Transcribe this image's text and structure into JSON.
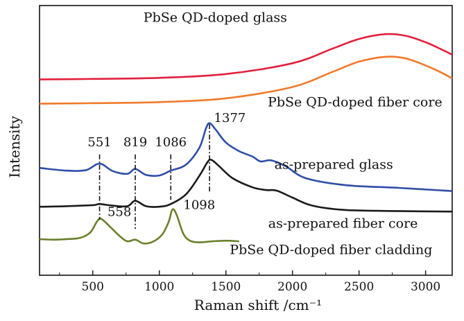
{
  "chart_data": {
    "type": "line",
    "xlabel": "Raman shift /cm⁻¹",
    "ylabel": "Intensity",
    "xlim": [
      100,
      3200
    ],
    "ylim": [
      0,
      100
    ],
    "x_ticks": [
      500,
      1000,
      1500,
      2000,
      2500,
      3000
    ],
    "x_tick_labels": [
      "500",
      "1000",
      "1500",
      "2000",
      "2500",
      "3000"
    ],
    "y_ticks_shown": false,
    "grid": false,
    "legend": "none",
    "series": [
      {
        "label": "PbSe QD-doped glass",
        "color": "#e21f3c",
        "points": [
          [
            100,
            72.6
          ],
          [
            500,
            72.8
          ],
          [
            1000,
            73.2
          ],
          [
            1500,
            74.6
          ],
          [
            2000,
            78.6
          ],
          [
            2300,
            84.0
          ],
          [
            2500,
            87.6
          ],
          [
            2700,
            89.4
          ],
          [
            2850,
            88.8
          ],
          [
            3000,
            86.4
          ],
          [
            3100,
            84.2
          ],
          [
            3200,
            81.8
          ]
        ]
      },
      {
        "label": "PbSe QD-doped fiber core",
        "color": "#f07a2a",
        "points": [
          [
            100,
            63.6
          ],
          [
            500,
            63.8
          ],
          [
            1000,
            64.2
          ],
          [
            1500,
            65.6
          ],
          [
            2000,
            69.8
          ],
          [
            2300,
            75.4
          ],
          [
            2500,
            79.2
          ],
          [
            2700,
            81.0
          ],
          [
            2850,
            80.4
          ],
          [
            3000,
            77.8
          ],
          [
            3100,
            75.6
          ],
          [
            3200,
            73.0
          ]
        ]
      },
      {
        "label": "as-prepared glass",
        "color": "#2f4ea8",
        "points": [
          [
            100,
            39.8
          ],
          [
            300,
            38.8
          ],
          [
            450,
            39.0
          ],
          [
            551,
            41.4
          ],
          [
            650,
            38.6
          ],
          [
            760,
            37.6
          ],
          [
            819,
            39.4
          ],
          [
            900,
            37.2
          ],
          [
            1000,
            37.0
          ],
          [
            1086,
            38.8
          ],
          [
            1200,
            41.0
          ],
          [
            1300,
            47.2
          ],
          [
            1350,
            54.4
          ],
          [
            1377,
            56.4
          ],
          [
            1420,
            54.2
          ],
          [
            1500,
            49.2
          ],
          [
            1600,
            46.0
          ],
          [
            1700,
            44.0
          ],
          [
            1760,
            42.2
          ],
          [
            1840,
            42.6
          ],
          [
            1950,
            40.4
          ],
          [
            2100,
            36.0
          ],
          [
            2400,
            33.4
          ],
          [
            2800,
            32.4
          ],
          [
            3200,
            31.2
          ]
        ]
      },
      {
        "label": "as-prepared fiber core",
        "color": "#1a1a1a",
        "points": [
          [
            100,
            25.4
          ],
          [
            300,
            25.6
          ],
          [
            500,
            26.0
          ],
          [
            551,
            26.4
          ],
          [
            650,
            25.8
          ],
          [
            760,
            25.6
          ],
          [
            819,
            27.6
          ],
          [
            900,
            25.6
          ],
          [
            1000,
            25.4
          ],
          [
            1086,
            26.4
          ],
          [
            1200,
            30.0
          ],
          [
            1300,
            36.8
          ],
          [
            1360,
            41.8
          ],
          [
            1390,
            42.8
          ],
          [
            1450,
            40.4
          ],
          [
            1550,
            36.0
          ],
          [
            1700,
            32.6
          ],
          [
            1800,
            31.6
          ],
          [
            1880,
            31.4
          ],
          [
            2000,
            28.8
          ],
          [
            2150,
            25.8
          ],
          [
            2400,
            24.2
          ],
          [
            2800,
            23.8
          ],
          [
            3200,
            23.6
          ]
        ]
      },
      {
        "label": "PbSe QD-doped fiber cladding",
        "color": "#6b7f2c",
        "points": [
          [
            100,
            13.4
          ],
          [
            200,
            13.2
          ],
          [
            300,
            13.4
          ],
          [
            400,
            13.8
          ],
          [
            480,
            15.8
          ],
          [
            530,
            19.8
          ],
          [
            558,
            21.0
          ],
          [
            600,
            19.4
          ],
          [
            700,
            14.6
          ],
          [
            760,
            12.6
          ],
          [
            820,
            13.2
          ],
          [
            880,
            11.8
          ],
          [
            950,
            12.4
          ],
          [
            1020,
            15.0
          ],
          [
            1070,
            19.8
          ],
          [
            1098,
            24.4
          ],
          [
            1130,
            22.4
          ],
          [
            1180,
            15.4
          ],
          [
            1230,
            12.8
          ],
          [
            1300,
            12.2
          ],
          [
            1400,
            12.6
          ],
          [
            1500,
            12.8
          ],
          [
            1600,
            12.6
          ]
        ]
      }
    ],
    "peak_labels": [
      {
        "text": "551",
        "x": 551,
        "y": 47.8,
        "line_from": 44.8,
        "line_to": 20.6
      },
      {
        "text": "819",
        "x": 819,
        "y": 47.8,
        "line_from": 44.8,
        "line_to": 17.2
      },
      {
        "text": "1086",
        "x": 1086,
        "y": 47.8,
        "line_from": 44.8,
        "line_to": 28.0
      },
      {
        "text": "1377",
        "x": 1530,
        "y": 56.8,
        "line_from": 56.0,
        "line_to": 30.4,
        "line_x": 1377
      },
      {
        "text": "558",
        "x": 700,
        "y": 22.0
      },
      {
        "text": "1098",
        "x": 1300,
        "y": 24.6
      }
    ],
    "series_labels": [
      {
        "text": "PbSe QD-doped glass",
        "x": 1420,
        "y": 94.0
      },
      {
        "text": "PbSe QD-doped fiber core",
        "x": 2470,
        "y": 62.6
      },
      {
        "text": "as-prepared glass",
        "x": 2310,
        "y": 39.4
      },
      {
        "text": "as-prepared fiber core",
        "x": 2380,
        "y": 17.6
      },
      {
        "text": "PbSe QD-doped fiber cladding",
        "x": 2290,
        "y": 7.8
      }
    ]
  }
}
